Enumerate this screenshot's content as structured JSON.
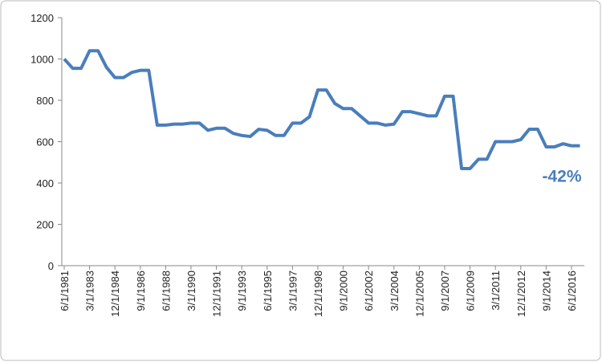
{
  "chart_data": {
    "type": "line",
    "categories": [
      "6/1/1981",
      null,
      null,
      "3/1/1983",
      null,
      null,
      "12/1/1984",
      null,
      null,
      "9/1/1986",
      null,
      null,
      "6/1/1988",
      null,
      null,
      "3/1/1990",
      null,
      null,
      "12/1/1991",
      null,
      null,
      "9/1/1993",
      null,
      null,
      "6/1/1995",
      null,
      null,
      "3/1/1997",
      null,
      null,
      "12/1/1998",
      null,
      null,
      "9/1/2000",
      null,
      null,
      "6/1/2002",
      null,
      null,
      "3/1/2004",
      null,
      null,
      "12/1/2005",
      null,
      null,
      "9/1/2007",
      null,
      null,
      "6/1/2009",
      null,
      null,
      "3/1/2011",
      null,
      null,
      "12/1/2012",
      null,
      null,
      "9/1/2014",
      null,
      null,
      "6/1/2016",
      null
    ],
    "series": [
      {
        "name": "Value",
        "color": "#4a7ebb",
        "values": [
          1000,
          955,
          955,
          1040,
          1040,
          960,
          910,
          910,
          935,
          945,
          945,
          680,
          680,
          685,
          685,
          690,
          690,
          655,
          665,
          665,
          640,
          630,
          625,
          660,
          655,
          630,
          630,
          690,
          690,
          720,
          850,
          850,
          785,
          760,
          760,
          725,
          690,
          690,
          680,
          685,
          745,
          745,
          735,
          725,
          725,
          820,
          820,
          470,
          470,
          515,
          515,
          600,
          600,
          600,
          610,
          660,
          660,
          575,
          575,
          590,
          580,
          580
        ]
      }
    ],
    "ylim": [
      0,
      1200
    ],
    "yticks": [
      0,
      200,
      400,
      600,
      800,
      1000,
      1200
    ],
    "grid": false,
    "annotation": "-42%"
  }
}
